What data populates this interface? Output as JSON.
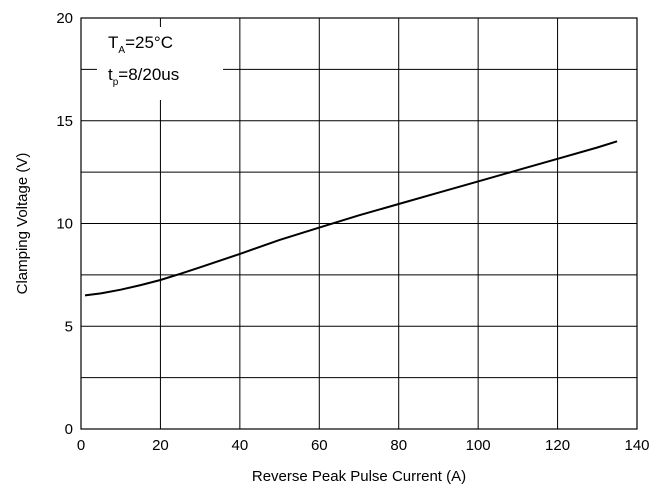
{
  "chart_data": {
    "type": "line",
    "title": "",
    "xlabel": "Reverse Peak Pulse Current (A)",
    "ylabel": "Clamping Voltage (V)",
    "xlim": [
      0,
      140
    ],
    "ylim": [
      0,
      20
    ],
    "x_ticks": [
      0,
      20,
      40,
      60,
      80,
      100,
      120,
      140
    ],
    "x_tick_labels": [
      "0",
      "20",
      "40",
      "60",
      "80",
      "100",
      "120",
      "140"
    ],
    "y_ticks": [
      0,
      5,
      10,
      15,
      20
    ],
    "y_tick_labels": [
      "0",
      "5",
      "10",
      "15",
      "20"
    ],
    "y_gridlines": [
      0,
      2.5,
      5,
      7.5,
      10,
      12.5,
      15,
      17.5,
      20
    ],
    "grid": true,
    "line_color": "#000000",
    "series": [
      {
        "x": [
          1,
          5,
          10,
          15,
          20,
          25,
          30,
          40,
          50,
          60,
          70,
          80,
          90,
          100,
          110,
          120,
          130,
          135
        ],
        "y": [
          6.5,
          6.6,
          6.78,
          7.0,
          7.25,
          7.55,
          7.87,
          8.52,
          9.2,
          9.8,
          10.4,
          10.95,
          11.5,
          12.05,
          12.6,
          13.15,
          13.7,
          14.0
        ]
      }
    ],
    "annotations": {
      "line1_main": "T",
      "line1_sub": "A",
      "line1_rest": "=25°C",
      "line2_main": "t",
      "line2_sub": "p",
      "line2_rest": "=8/20us"
    }
  }
}
